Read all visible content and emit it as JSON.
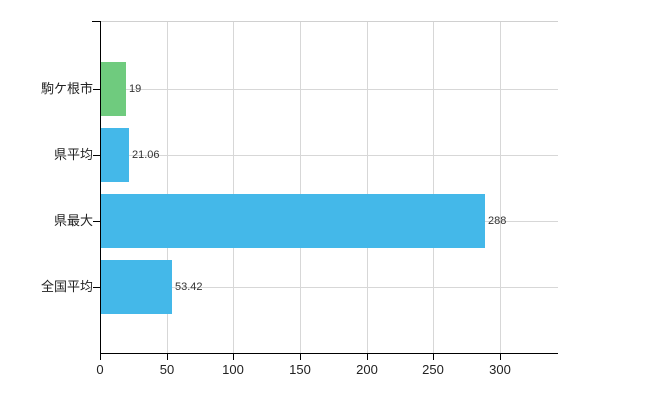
{
  "chart_data": {
    "type": "bar",
    "orientation": "horizontal",
    "title": "",
    "xlabel": "",
    "ylabel": "",
    "categories": [
      "駒ケ根市",
      "県平均",
      "県最大",
      "全国平均"
    ],
    "values": [
      19,
      21.06,
      288,
      53.42
    ],
    "value_labels": [
      "19",
      "21.06",
      "288",
      "53.42"
    ],
    "bar_colors": [
      "#6fcb7e",
      "#44b8e9",
      "#44b8e9",
      "#44b8e9"
    ],
    "x_ticks": [
      0,
      50,
      100,
      150,
      200,
      250,
      300
    ],
    "x_tick_labels": [
      "0",
      "50",
      "100",
      "150",
      "200",
      "250",
      "300"
    ],
    "xlim": [
      0,
      343
    ],
    "grid": true,
    "legend_position": "none"
  },
  "colors": {
    "green_bar": "#6fcb7e",
    "blue_bar": "#44b8e9",
    "grid": "#d7d7d7",
    "axis": "#000000",
    "label_text": "#222222",
    "value_text": "#333333",
    "background": "#ffffff"
  }
}
